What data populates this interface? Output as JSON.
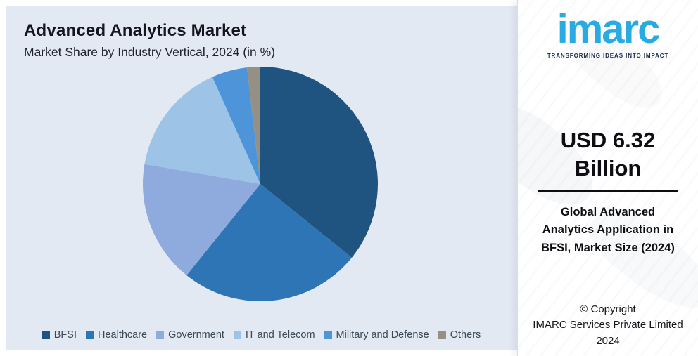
{
  "header": {
    "title": "Advanced Analytics Market",
    "subtitle": "Market Share by Industry Vertical, 2024 (in %)"
  },
  "logo": {
    "text": "imarc",
    "tagline": "TRANSFORMING IDEAS INTO IMPACT",
    "brand_color": "#29ABE2"
  },
  "stat_panel": {
    "market_value": "USD 6.32 Billion",
    "description": "Global Advanced Analytics Application in BFSI, Market Size (2024)",
    "copyright_line1": "© Copyright",
    "copyright_line2": "IMARC Services Private Limited",
    "copyright_line3": "2024"
  },
  "chart_data": {
    "type": "pie",
    "title": "Advanced Analytics Market",
    "subtitle": "Market Share by Industry Vertical, 2024 (in %)",
    "unit": "%",
    "start_angle_deg": 0,
    "direction": "clockwise",
    "legend_position": "bottom",
    "slices": [
      {
        "label": "BFSI",
        "value": 35.8,
        "color": "#1F5380"
      },
      {
        "label": "Healthcare",
        "value": 25.0,
        "color": "#2E75B6"
      },
      {
        "label": "Government",
        "value": 16.9,
        "color": "#8FAADC"
      },
      {
        "label": "IT and Telecom",
        "value": 15.6,
        "color": "#9DC3E6"
      },
      {
        "label": "Military and Defense",
        "value": 4.9,
        "color": "#4D94D8"
      },
      {
        "label": "Others",
        "value": 1.8,
        "color": "#969084"
      }
    ],
    "colors": {
      "panel_background": "#E3E9F3",
      "side_panel_background": "#FFFFFF"
    }
  }
}
